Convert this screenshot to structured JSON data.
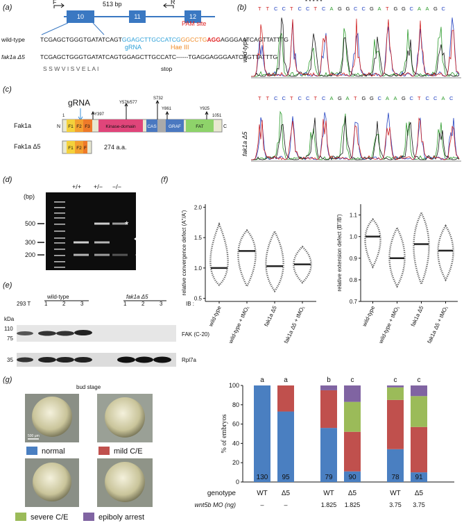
{
  "panel_labels": [
    "(a)",
    "(b)",
    "(c)",
    "(d)",
    "(e)",
    "(f)",
    "(g)"
  ],
  "a": {
    "primer_forward": "F",
    "primer_reverse": "R",
    "amplicon": "513 bp",
    "exons": [
      "10",
      "11",
      "12"
    ],
    "pam": "PAM site",
    "grna": "gRNA",
    "haeiii": "Hae III",
    "wild_type": {
      "name": "wild-type",
      "parts": [
        "TCGAGCTGGGTGATATCAGT",
        "GGAGCTTGCCATCG",
        "GGCCTG",
        "AGG",
        "AGGGAATCAGTTATTTG"
      ]
    },
    "mutant": {
      "name": "fak1a Δ5",
      "parts": [
        "TCGAGCTGGGTGATATCAGTGGAGCTTGCCATC",
        "------",
        "TGAGGAGGGAATCAGTTATTTG"
      ]
    },
    "amino_acids": "S  S  W  V  I  S  V  E  L  A  I",
    "stop": "stop"
  },
  "b": {
    "wild_type": {
      "name": "wild-type",
      "sequence": "TTCCTCCTCAGGCCGATGGCAAGC",
      "stars": "* * * * *"
    },
    "mutant": {
      "name": "fak1a Δ5",
      "sequence": "TTCCTCCTCAGATGGCAAGCTCCAC"
    }
  },
  "c": {
    "grna": "gRNA",
    "sites": [
      "Y397",
      "Y576/577",
      "S732",
      "Y861",
      "Y925"
    ],
    "start": "1",
    "end": "1051",
    "n_term": "N",
    "c_term": "C",
    "protein": "Fak1a",
    "domains": [
      "F1",
      "F2",
      "F3",
      "Kinase-domain",
      "CAS",
      "GRAF",
      "FAT"
    ],
    "mutant": "Fak1a Δ5",
    "mutant_domains": [
      "F1",
      "F2",
      "F"
    ],
    "mutant_length": "274 a.a."
  },
  "d": {
    "lanes": [
      "+/+",
      "+/−",
      "−/−"
    ],
    "unit": "(bp)",
    "markers": [
      "500",
      "300",
      "200"
    ],
    "asterisk": "*"
  },
  "e": {
    "unit": "kDa",
    "control": "293 T",
    "wild_type": "wild-type",
    "mutant": "fak1a Δ5",
    "lanes": [
      "1",
      "2",
      "3"
    ],
    "ib": "IB :",
    "antibodies": [
      "FAK (C-20)",
      "Rpl7a"
    ],
    "markers": [
      "110",
      "75",
      "35"
    ]
  },
  "g": {
    "stage": "bud stage",
    "scale": "500 μm"
  },
  "chart_data": [
    {
      "type": "dot",
      "y_label": "relative convergence defect (A''/A')",
      "categories": [
        "wild-type",
        "wild-type + tMO₁",
        "fak1a Δ5",
        "fak1a Δ5 + tMO₁"
      ],
      "values": [
        1.0,
        1.28,
        1.03,
        1.06
      ],
      "min_values": [
        0.72,
        0.7,
        0.62,
        0.76
      ],
      "max_values": [
        1.72,
        1.62,
        1.6,
        1.35
      ],
      "ylim": [
        0.45,
        2.05
      ],
      "yticks": [
        0.5,
        {
          "value": 1,
          "label": "1.0"
        },
        1.5,
        {
          "value": 2,
          "label": "2.0"
        }
      ],
      "color": "#222222"
    },
    {
      "type": "dot",
      "y_label": "relative extension defect (B''/B')",
      "categories": [
        "wild-type",
        "wild-type + tMO₁",
        "fak1a Δ5",
        "fak1a Δ5 + tMO₁"
      ],
      "values": [
        1.0,
        0.9,
        0.965,
        0.935
      ],
      "min_values": [
        0.86,
        0.77,
        0.78,
        0.8
      ],
      "max_values": [
        1.08,
        1.04,
        1.11,
        1.05
      ],
      "ylim": [
        0.7,
        1.15
      ],
      "yticks": [
        0.7,
        0.8,
        0.9,
        {
          "value": 1,
          "label": "1.0"
        },
        1.1
      ],
      "color": "#222222"
    },
    {
      "type": "stacked_bar",
      "y_label": "% of embryos",
      "categories": [
        "WT",
        "Δ5",
        "WT",
        "Δ5",
        "WT",
        "Δ5"
      ],
      "doses": [
        "–",
        "–",
        "1.825",
        "1.825",
        "3.75",
        "3.75"
      ],
      "row_labels": [
        "genotype",
        "wnt5b MO (ng)"
      ],
      "n_labels": [
        "130",
        "95",
        "79",
        "90",
        "78",
        "91"
      ],
      "letters": [
        "a",
        "a",
        "b",
        "c",
        "c",
        "c"
      ],
      "series": [
        {
          "name": "normal",
          "color": "#4a7fc1",
          "values": [
            100,
            73,
            56,
            11,
            34,
            10
          ]
        },
        {
          "name": "mild C/E",
          "color": "#c0504d",
          "values": [
            0,
            27,
            39,
            41,
            51,
            47
          ]
        },
        {
          "name": "severe C/E",
          "color": "#9bbb59",
          "values": [
            0,
            0,
            0,
            31,
            13,
            32
          ]
        },
        {
          "name": "epiboly arrest",
          "color": "#8064a2",
          "values": [
            0,
            0,
            5,
            17,
            2,
            11
          ]
        }
      ],
      "ylim": [
        0,
        100
      ],
      "yticks": [
        0,
        20,
        40,
        60,
        80,
        100
      ]
    }
  ]
}
